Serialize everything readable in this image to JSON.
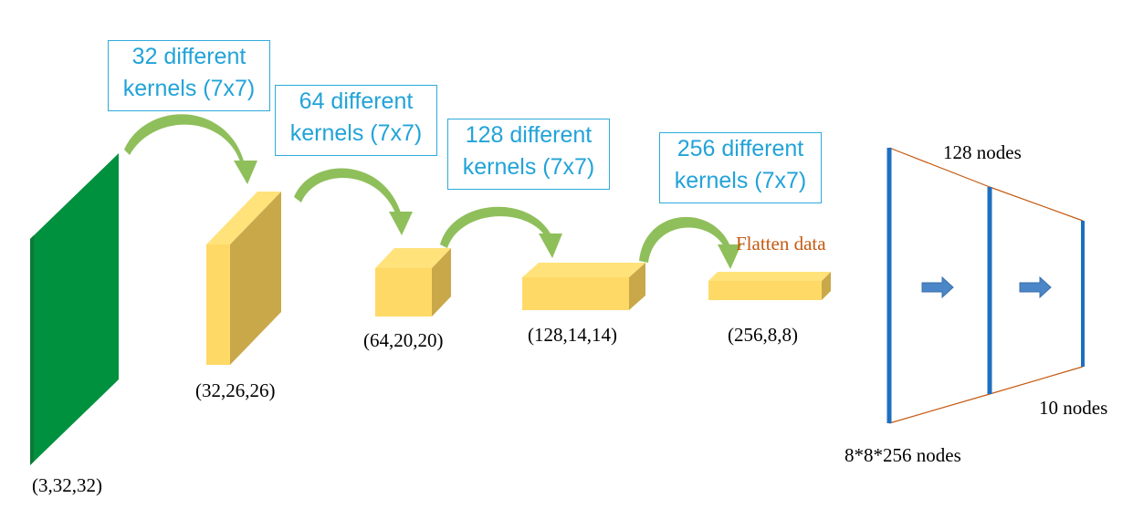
{
  "colors": {
    "input_layer": "#00913f",
    "feature_map_front": "#ffd966",
    "feature_map_side": "#c9a84a",
    "arrow": "#8fbf5b",
    "kernel_text": "#22a3d8",
    "fc_bar": "#1f6fc0",
    "fc_edge": "#c55a11",
    "flow_arrow": "#4a86c8"
  },
  "layers": [
    {
      "shape": "(3,32,32)"
    },
    {
      "shape": "(32,26,26)"
    },
    {
      "shape": "(64,20,20)"
    },
    {
      "shape": "(128,14,14)"
    },
    {
      "shape": "(256,8,8)"
    }
  ],
  "kernels": [
    {
      "line1": "32 different",
      "line2": "kernels (7x7)"
    },
    {
      "line1": "64 different",
      "line2": "kernels (7x7)"
    },
    {
      "line1": "128 different",
      "line2": "kernels (7x7)"
    },
    {
      "line1": "256 different",
      "line2": "kernels (7x7)"
    }
  ],
  "flatten_label": "Flatten data",
  "fully_connected": {
    "input_nodes": "8*8*256 nodes",
    "hidden_nodes": "128 nodes",
    "output_nodes": "10 nodes",
    "icons": [
      "right-arrow-icon",
      "right-arrow-icon"
    ]
  }
}
